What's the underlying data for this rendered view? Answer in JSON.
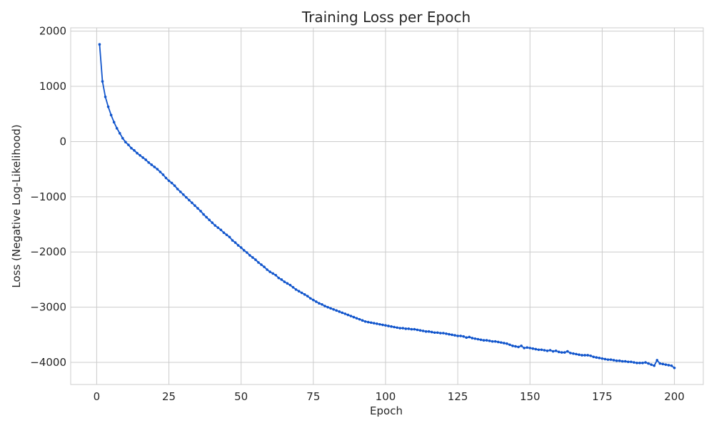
{
  "chart_data": {
    "type": "line",
    "title": "Training Loss per Epoch",
    "xlabel": "Epoch",
    "ylabel": "Loss (Negative Log-Likelihood)",
    "xlim": [
      -9,
      210
    ],
    "ylim": [
      -4400,
      2060
    ],
    "xticks": [
      0,
      25,
      50,
      75,
      100,
      125,
      150,
      175,
      200
    ],
    "yticks": [
      -4000,
      -3000,
      -2000,
      -1000,
      0,
      1000,
      2000
    ],
    "grid": true,
    "legend": "none",
    "x_start": 1,
    "x_step": 1,
    "colors": {
      "line": "#1155cc"
    },
    "series": [
      {
        "values": [
          1760,
          1090,
          810,
          630,
          480,
          350,
          240,
          150,
          60,
          -10,
          -60,
          -120,
          -160,
          -210,
          -250,
          -290,
          -330,
          -380,
          -420,
          -460,
          -500,
          -550,
          -600,
          -660,
          -710,
          -750,
          -800,
          -860,
          -910,
          -960,
          -1010,
          -1060,
          -1110,
          -1160,
          -1210,
          -1260,
          -1320,
          -1370,
          -1420,
          -1470,
          -1520,
          -1560,
          -1600,
          -1650,
          -1690,
          -1730,
          -1790,
          -1830,
          -1880,
          -1920,
          -1970,
          -2010,
          -2060,
          -2100,
          -2140,
          -2190,
          -2230,
          -2270,
          -2320,
          -2360,
          -2390,
          -2420,
          -2470,
          -2500,
          -2540,
          -2570,
          -2600,
          -2640,
          -2680,
          -2710,
          -2740,
          -2770,
          -2800,
          -2840,
          -2870,
          -2900,
          -2930,
          -2950,
          -2980,
          -3000,
          -3020,
          -3040,
          -3060,
          -3080,
          -3100,
          -3120,
          -3140,
          -3160,
          -3180,
          -3200,
          -3220,
          -3240,
          -3260,
          -3270,
          -3280,
          -3290,
          -3300,
          -3310,
          -3320,
          -3330,
          -3340,
          -3350,
          -3360,
          -3370,
          -3380,
          -3380,
          -3390,
          -3390,
          -3400,
          -3400,
          -3410,
          -3420,
          -3430,
          -3440,
          -3440,
          -3450,
          -3460,
          -3460,
          -3470,
          -3470,
          -3480,
          -3490,
          -3500,
          -3510,
          -3520,
          -3520,
          -3530,
          -3550,
          -3540,
          -3560,
          -3570,
          -3580,
          -3590,
          -3600,
          -3600,
          -3610,
          -3620,
          -3620,
          -3630,
          -3640,
          -3650,
          -3660,
          -3680,
          -3700,
          -3710,
          -3720,
          -3700,
          -3740,
          -3730,
          -3740,
          -3750,
          -3760,
          -3770,
          -3770,
          -3780,
          -3790,
          -3780,
          -3800,
          -3790,
          -3810,
          -3820,
          -3820,
          -3800,
          -3830,
          -3840,
          -3850,
          -3860,
          -3870,
          -3870,
          -3870,
          -3880,
          -3900,
          -3910,
          -3920,
          -3930,
          -3940,
          -3950,
          -3950,
          -3960,
          -3970,
          -3970,
          -3980,
          -3980,
          -3990,
          -3990,
          -4000,
          -4010,
          -4010,
          -4010,
          -4000,
          -4020,
          -4040,
          -4060,
          -3960,
          -4020,
          -4030,
          -4040,
          -4050,
          -4060,
          -4100
        ]
      }
    ]
  }
}
